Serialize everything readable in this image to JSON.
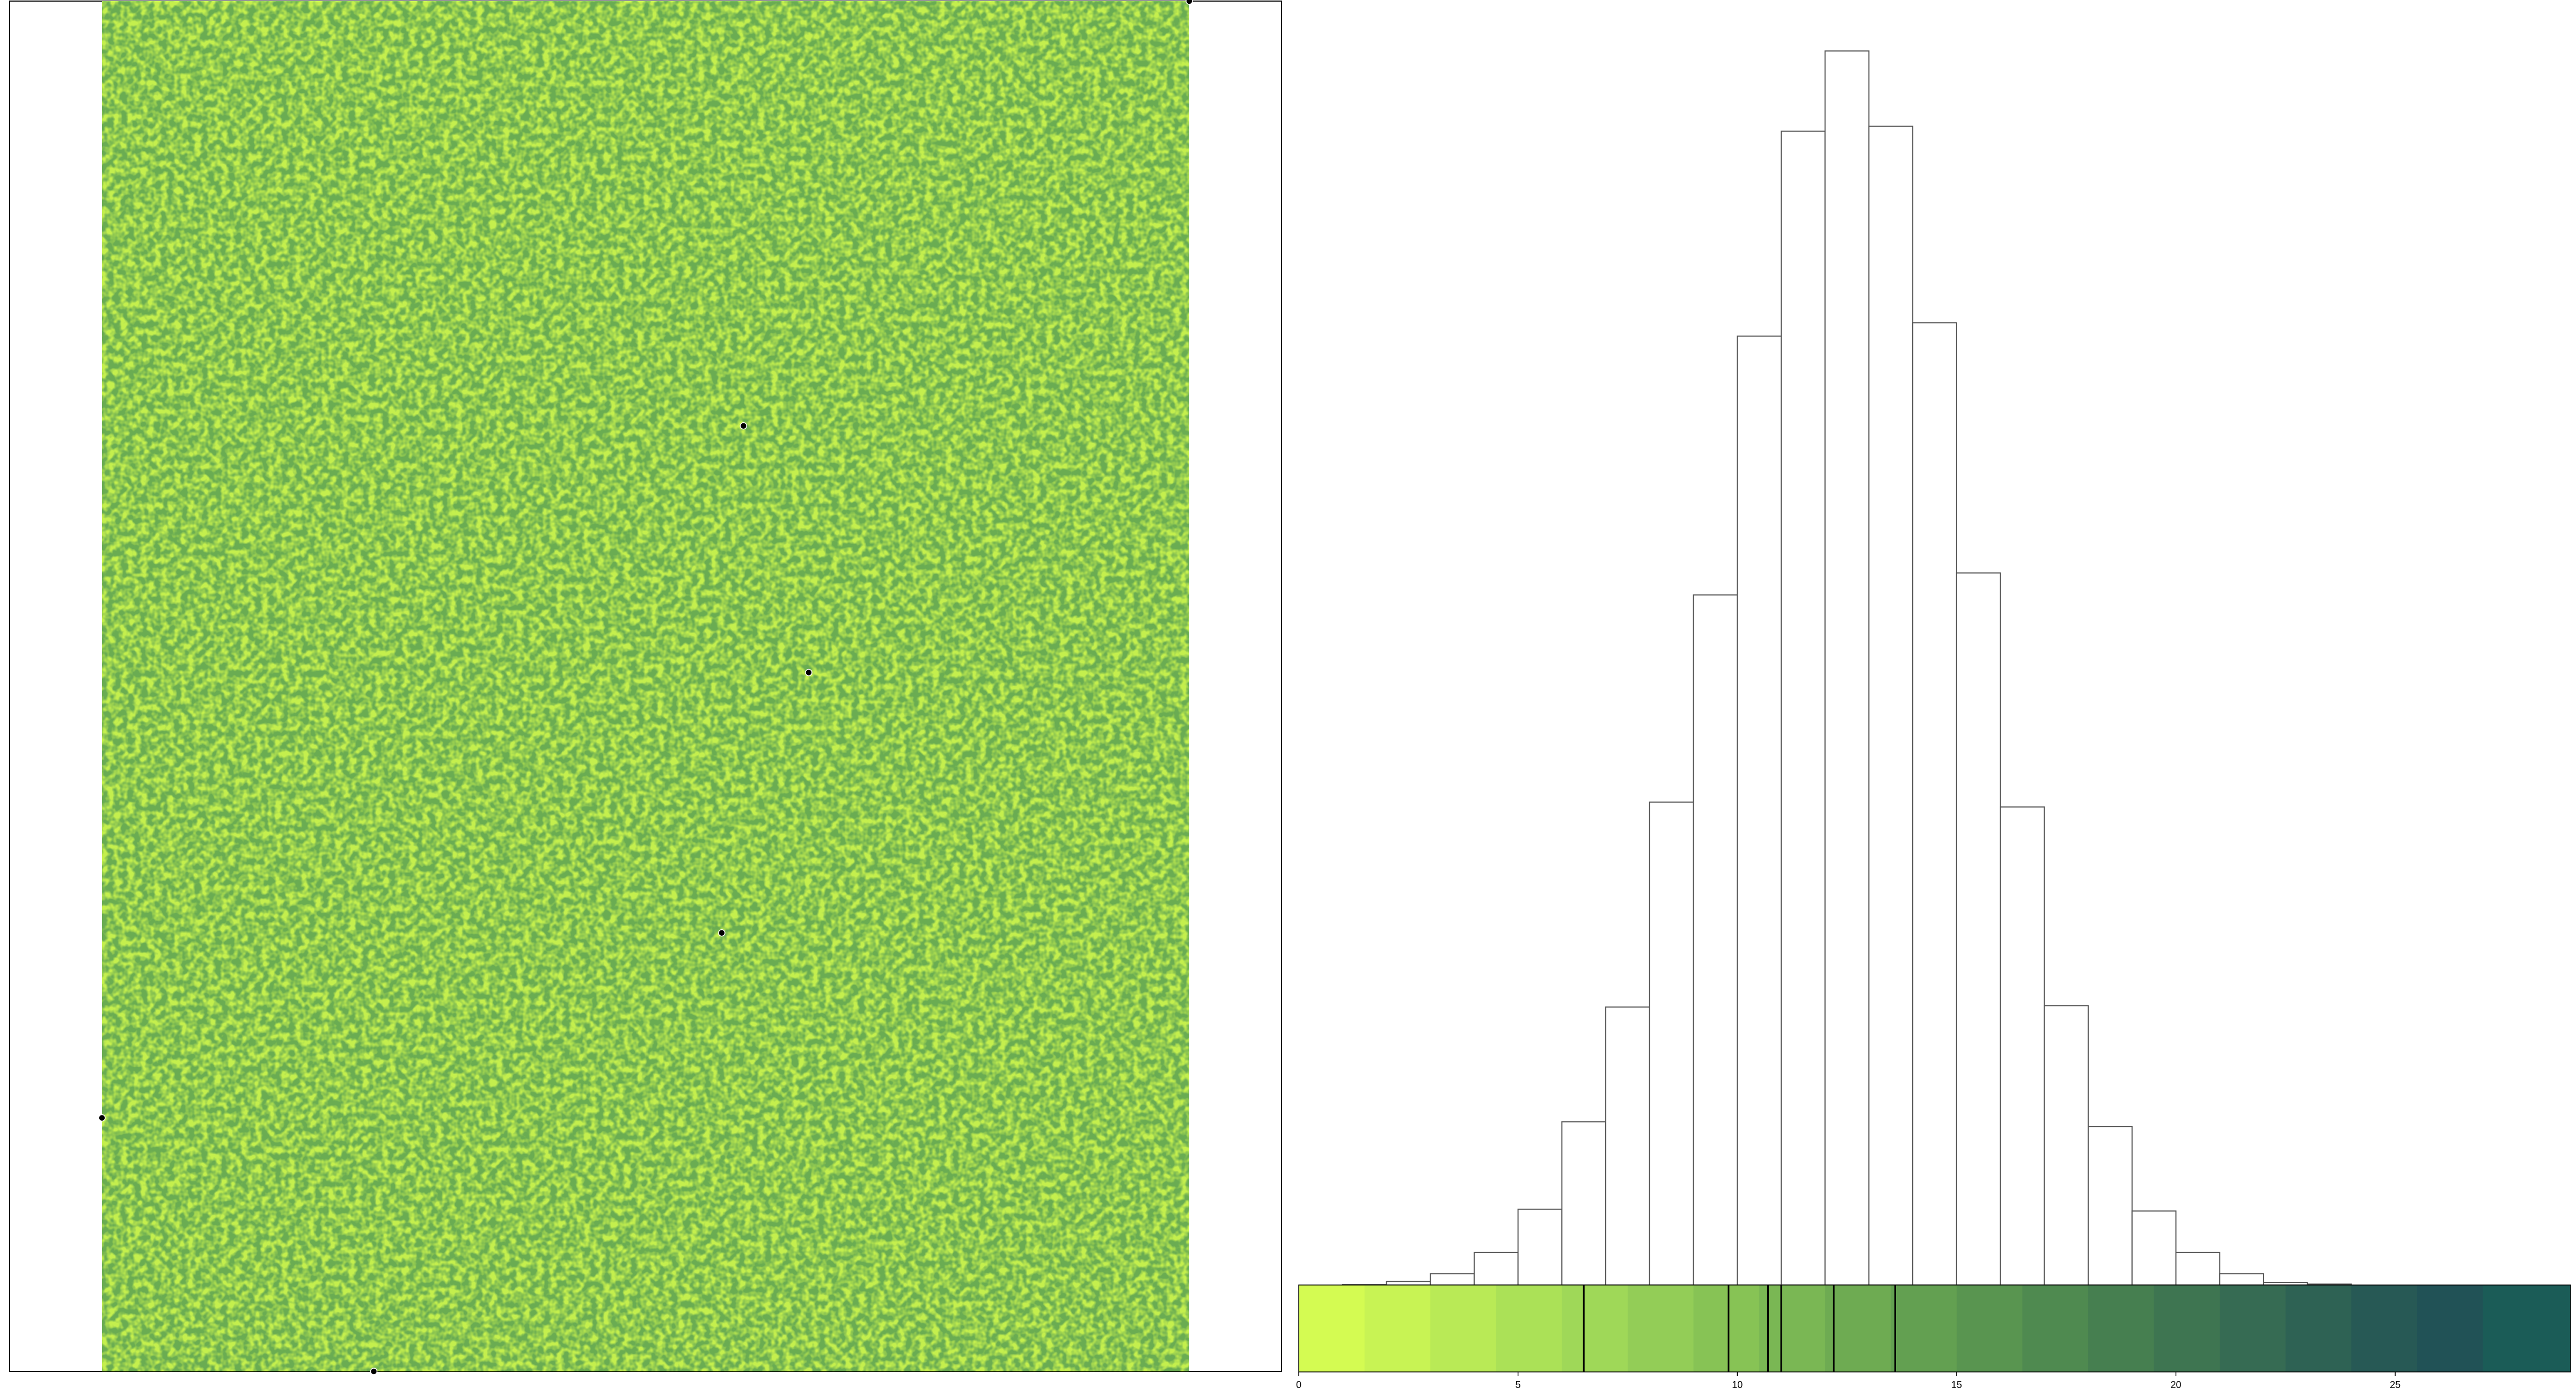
{
  "chart_data": [
    {
      "type": "heatmap",
      "title": "",
      "xlabel": "",
      "ylabel": "",
      "palette": [
        "#d4f542",
        "#c4ef4e",
        "#b2e555",
        "#a1d95a",
        "#8fcc59",
        "#7dbd55",
        "#6aac52",
        "#579b4f",
        "#478a4f",
        "#3c7c53",
        "#2f6e55",
        "#245f57",
        "#1d5a57"
      ],
      "markers": [
        {
          "x": 0.59,
          "y": 0.31
        },
        {
          "x": 0.65,
          "y": 0.49
        },
        {
          "x": 0.57,
          "y": 0.68
        },
        {
          "x": 0.0,
          "y": 0.815
        },
        {
          "x": 0.25,
          "y": 1.0
        },
        {
          "x": 1.0,
          "y": 0.0
        }
      ]
    },
    {
      "type": "bar",
      "title": "",
      "xlabel": "",
      "ylabel": "",
      "bin_width": 1,
      "bin_start": 1,
      "xlim": [
        0,
        29
      ],
      "xticks": [
        "0",
        "5",
        "10",
        "15",
        "20",
        "25"
      ],
      "xtick_values": [
        0,
        5,
        10,
        15,
        20,
        25
      ],
      "values": [
        1,
        8,
        25,
        73,
        169,
        364,
        620,
        1077,
        1539,
        2116,
        2573,
        2752,
        2584,
        2146,
        1588,
        1066,
        623,
        353,
        165,
        73,
        25,
        6,
        2
      ],
      "colorbar": {
        "breaks": [
          0,
          1.5,
          3,
          4.5,
          6,
          7.5,
          9,
          10.5,
          12,
          13.5,
          15,
          16.5,
          18,
          19.5,
          21,
          22.5,
          24,
          25.5,
          27,
          29
        ],
        "colors": [
          "#d4fb52",
          "#c8f354",
          "#b9ea56",
          "#abe157",
          "#9fd858",
          "#93cd57",
          "#87c355",
          "#7ab754",
          "#6eab52",
          "#63a051",
          "#599550",
          "#4f8a50",
          "#467f50",
          "#3e7551",
          "#366b53",
          "#2e6254",
          "#275955",
          "#215256",
          "#1b5c57"
        ],
        "markers": [
          6.5,
          9.8,
          10.7,
          11.0,
          12.2,
          13.6
        ]
      }
    }
  ]
}
